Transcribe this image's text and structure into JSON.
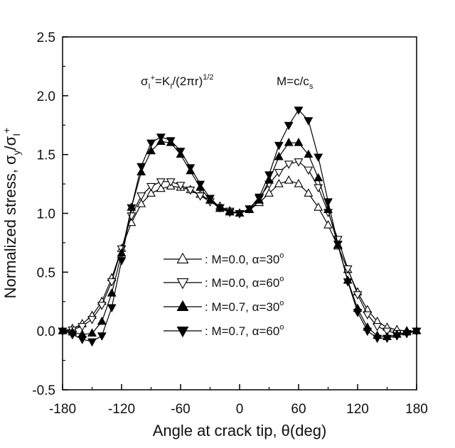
{
  "chart_data": {
    "type": "line",
    "xlabel": "Angle at crack tip, θ(deg)",
    "ylabel": "Normalized stress, σy/σI+",
    "xlim": [
      -180,
      180
    ],
    "ylim": [
      -0.5,
      2.5
    ],
    "xticks": [
      "-180",
      "-120",
      "-60",
      "0",
      "60",
      "120",
      "180"
    ],
    "yticks": [
      "-0.5",
      "0.0",
      "0.5",
      "1.0",
      "1.5",
      "2.0",
      "2.5"
    ],
    "x": [
      -180,
      -170,
      -160,
      -150,
      -140,
      -130,
      -120,
      -110,
      -100,
      -90,
      -80,
      -70,
      -60,
      -50,
      -40,
      -30,
      -20,
      -10,
      0,
      10,
      20,
      30,
      40,
      50,
      60,
      70,
      80,
      90,
      100,
      110,
      120,
      130,
      140,
      150,
      160,
      170,
      180
    ],
    "annotations": {
      "stress_def": {
        "sigma": "σ",
        "sub1": "I",
        "sup": "+",
        "eq": "=K",
        "sub2": "I",
        "denom": "/(2πr)",
        "power": "1/2"
      },
      "mach_def": {
        "text": "M=c/c",
        "sub": "s"
      }
    },
    "legend_position": "center-bottom",
    "series": [
      {
        "name": ": M=0.0, α=30°",
        "label_pre": ": M=0.0, ",
        "alpha": "α=30",
        "deg": "o",
        "marker": "triangle-up-open",
        "color": "#000000",
        "values": [
          0.0,
          0.02,
          0.06,
          0.13,
          0.25,
          0.45,
          0.7,
          0.92,
          1.08,
          1.17,
          1.21,
          1.23,
          1.22,
          1.2,
          1.16,
          1.11,
          1.06,
          1.02,
          1.0,
          1.03,
          1.09,
          1.17,
          1.25,
          1.28,
          1.25,
          1.17,
          1.05,
          0.9,
          0.72,
          0.52,
          0.33,
          0.18,
          0.08,
          0.03,
          0.01,
          0.0,
          0.0
        ]
      },
      {
        "name": ": M=0.0, α=60°",
        "label_pre": ": M=0.0, ",
        "alpha": "α=60",
        "deg": "o",
        "marker": "triangle-down-open",
        "color": "#000000",
        "values": [
          0.0,
          0.01,
          0.04,
          0.1,
          0.22,
          0.42,
          0.7,
          0.98,
          1.15,
          1.23,
          1.27,
          1.27,
          1.24,
          1.2,
          1.15,
          1.1,
          1.05,
          1.02,
          1.0,
          1.04,
          1.13,
          1.25,
          1.35,
          1.42,
          1.44,
          1.37,
          1.22,
          1.01,
          0.78,
          0.53,
          0.31,
          0.14,
          0.04,
          0.0,
          -0.02,
          -0.02,
          0.0
        ]
      },
      {
        "name": ": M=0.7, α=30°",
        "label_pre": ": M=0.7, ",
        "alpha": "α=30",
        "deg": "o",
        "marker": "triangle-up-filled",
        "color": "#000000",
        "values": [
          0.0,
          -0.01,
          -0.03,
          -0.02,
          0.08,
          0.32,
          0.66,
          1.05,
          1.35,
          1.53,
          1.61,
          1.6,
          1.5,
          1.36,
          1.22,
          1.11,
          1.04,
          1.01,
          1.0,
          1.03,
          1.11,
          1.28,
          1.48,
          1.6,
          1.6,
          1.5,
          1.3,
          1.03,
          0.73,
          0.43,
          0.19,
          0.03,
          -0.04,
          -0.05,
          -0.03,
          -0.01,
          0.0
        ]
      },
      {
        "name": ": M=0.7, α=60°",
        "label_pre": ": M=0.7, ",
        "alpha": "α=60",
        "deg": "o",
        "marker": "triangle-down-filled",
        "color": "#000000",
        "values": [
          0.0,
          -0.03,
          -0.07,
          -0.09,
          -0.04,
          0.2,
          0.6,
          1.05,
          1.4,
          1.6,
          1.65,
          1.62,
          1.53,
          1.39,
          1.25,
          1.13,
          1.05,
          1.01,
          1.0,
          1.04,
          1.14,
          1.33,
          1.58,
          1.75,
          1.88,
          1.79,
          1.48,
          1.1,
          0.74,
          0.42,
          0.16,
          0.0,
          -0.06,
          -0.06,
          -0.04,
          -0.02,
          0.0
        ]
      }
    ]
  }
}
